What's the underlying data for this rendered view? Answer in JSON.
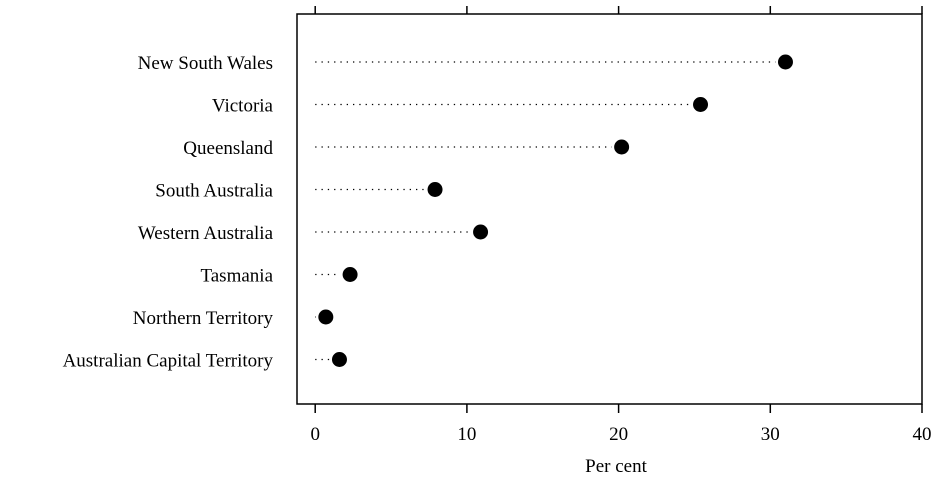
{
  "chart_data": {
    "type": "dot",
    "categories": [
      "New South Wales",
      "Victoria",
      "Queensland",
      "South Australia",
      "Western Australia",
      "Tasmania",
      "Northern Territory",
      "Australian Capital Territory"
    ],
    "values": [
      31.0,
      25.4,
      20.2,
      7.9,
      10.9,
      2.3,
      0.7,
      1.6
    ],
    "xlabel": "Per cent",
    "ylabel": "",
    "xlim": [
      -1.2,
      40
    ],
    "xticks": [
      0,
      10,
      20,
      30,
      40
    ],
    "grid": false,
    "dotted_leaders": true
  }
}
